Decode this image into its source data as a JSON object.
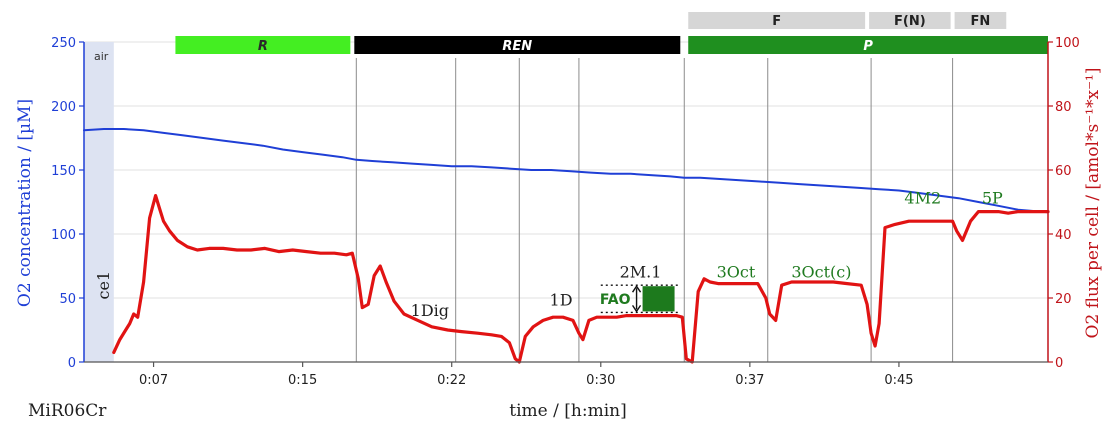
{
  "chart_data": {
    "type": "line",
    "title": "",
    "xlabel": "time / [h:min]",
    "ylabel_left": "O2 concentration / [µM]",
    "ylabel_right": "O2 flux per cell / [amol*s⁻¹*x⁻¹]",
    "medium_label": "MiR06Cr",
    "x_ticks": [
      "0:07",
      "0:15",
      "0:22",
      "0:30",
      "0:37",
      "0:45"
    ],
    "x_tick_minutes": [
      7.5,
      15,
      22.5,
      30,
      37.5,
      45
    ],
    "xlim_minutes": [
      4.0,
      52.5
    ],
    "y_left_ticks": [
      0,
      50,
      100,
      150,
      200,
      250
    ],
    "ylim_left": [
      0,
      250
    ],
    "y_right_ticks": [
      0,
      20,
      40,
      60,
      80,
      100
    ],
    "ylim_right": [
      0,
      100
    ],
    "grid": true,
    "colors": {
      "concentration": "#1f3fd6",
      "flux": "#e11313",
      "left_axis": "#1f3fd6",
      "right_axis": "#c0141a",
      "event_text": "#1f7a1f",
      "air_band": "#dde3f2"
    },
    "air_region": {
      "label": "air",
      "x_start": 4.0,
      "x_end": 5.5
    },
    "vertical_markers": [
      17.7,
      22.7,
      25.9,
      28.9,
      34.2,
      38.4,
      43.6,
      47.7
    ],
    "protocol_bands": [
      {
        "label": "R",
        "x_start": 8.6,
        "x_end": 17.4,
        "color": "#44ee22",
        "text_color": "#2a2a2a",
        "italic": true
      },
      {
        "label": "REN",
        "x_start": 17.6,
        "x_end": 34.0,
        "color": "#000000",
        "text_color": "#ffffff",
        "italic": true
      },
      {
        "label": "P",
        "x_start": 34.4,
        "x_end": 52.5,
        "color": "#1f8f1f",
        "text_color": "#ffffff",
        "italic": true
      },
      {
        "label": "F",
        "x_start": 34.4,
        "x_end": 43.3,
        "color": "#d6d6d6",
        "text_color": "#222222",
        "italic": false,
        "row": "top"
      },
      {
        "label": "F(N)",
        "x_start": 43.5,
        "x_end": 47.6,
        "color": "#d6d6d6",
        "text_color": "#222222",
        "italic": false,
        "row": "top"
      },
      {
        "label": "FN",
        "x_start": 47.8,
        "x_end": 50.4,
        "color": "#d6d6d6",
        "text_color": "#222222",
        "italic": false,
        "row": "top"
      }
    ],
    "events": [
      {
        "label": "ce1",
        "x": 5.0,
        "y_left": 60,
        "color": "#1f1f1f",
        "rotated": true
      },
      {
        "label": "1Dig",
        "x": 21.4,
        "y_left": 36,
        "color": "#1f1f1f"
      },
      {
        "label": "1D",
        "x": 28.0,
        "y_left": 44,
        "color": "#1f1f1f"
      },
      {
        "label": "2M.1",
        "x": 32.0,
        "y_left": 66,
        "color": "#1f1f1f"
      },
      {
        "label": "3Oct",
        "x": 36.8,
        "y_left": 66,
        "color": "#1f7a1f"
      },
      {
        "label": "3Oct(c)",
        "x": 41.1,
        "y_left": 66,
        "color": "#1f7a1f"
      },
      {
        "label": "4M2",
        "x": 46.2,
        "y_left": 124,
        "color": "#1f7a1f"
      },
      {
        "label": "5P",
        "x": 49.7,
        "y_left": 124,
        "color": "#1f7a1f"
      }
    ],
    "fao_annotation": {
      "label": "FAO",
      "x": 31.8,
      "y_low_flux": 15.5,
      "y_high_flux": 24.0,
      "x_line_start": 30.0,
      "x_line_end": 34.0,
      "box_color": "#1d7a1d"
    },
    "series": [
      {
        "name": "O2 concentration",
        "axis": "left",
        "x": [
          4.0,
          5.0,
          6.0,
          7.0,
          8.0,
          9.0,
          10.0,
          11.0,
          12.0,
          13.0,
          14.0,
          15.0,
          16.0,
          17.0,
          17.7,
          18.5,
          19.5,
          20.5,
          21.5,
          22.5,
          23.5,
          24.5,
          25.5,
          26.5,
          27.5,
          28.5,
          29.5,
          30.5,
          31.5,
          32.5,
          33.5,
          34.2,
          35.0,
          36.0,
          37.0,
          38.0,
          39.0,
          40.0,
          41.0,
          42.0,
          43.0,
          44.0,
          45.0,
          46.0,
          47.0,
          48.0,
          49.0,
          50.0,
          51.0,
          52.5
        ],
        "y": [
          181,
          182,
          182,
          181,
          179,
          177,
          175,
          173,
          171,
          169,
          166,
          164,
          162,
          160,
          158,
          157,
          156,
          155,
          154,
          153,
          153,
          152,
          151,
          150,
          150,
          149,
          148,
          147,
          147,
          146,
          145,
          144,
          144,
          143,
          142,
          141,
          140,
          139,
          138,
          137,
          136,
          135,
          134,
          132,
          130,
          128,
          125,
          122,
          119,
          117
        ]
      },
      {
        "name": "O2 flux per cell",
        "axis": "right",
        "x": [
          5.5,
          5.8,
          6.1,
          6.3,
          6.5,
          6.7,
          7.0,
          7.3,
          7.6,
          7.8,
          8.0,
          8.3,
          8.7,
          9.2,
          9.7,
          10.3,
          11.0,
          11.7,
          12.4,
          13.1,
          13.8,
          14.5,
          15.2,
          15.9,
          16.6,
          17.2,
          17.5,
          17.8,
          18.0,
          18.3,
          18.6,
          18.9,
          19.2,
          19.6,
          20.1,
          20.8,
          21.5,
          22.3,
          23.0,
          23.8,
          24.5,
          25.0,
          25.4,
          25.7,
          25.9,
          26.2,
          26.6,
          27.1,
          27.6,
          28.1,
          28.6,
          28.9,
          29.1,
          29.4,
          29.8,
          30.3,
          30.8,
          31.3,
          31.8,
          32.3,
          32.8,
          33.3,
          33.8,
          34.1,
          34.3,
          34.6,
          34.9,
          35.2,
          35.5,
          35.9,
          36.5,
          37.2,
          37.9,
          38.3,
          38.5,
          38.8,
          39.1,
          39.6,
          40.3,
          41.0,
          41.7,
          42.4,
          43.1,
          43.4,
          43.6,
          43.8,
          44.0,
          44.3,
          44.8,
          45.5,
          46.2,
          46.9,
          47.4,
          47.7,
          47.9,
          48.2,
          48.6,
          49.0,
          49.5,
          50.0,
          50.5,
          51.0,
          51.5,
          52.0,
          52.5
        ],
        "y": [
          3,
          7,
          10,
          12,
          15,
          14,
          25,
          45,
          52,
          48,
          44,
          41,
          38,
          36,
          35,
          35.5,
          35.5,
          35,
          35,
          35.5,
          34.5,
          35,
          34.5,
          34,
          34,
          33.5,
          34,
          26,
          17,
          18,
          27,
          30,
          25,
          19,
          15,
          13,
          11,
          10,
          9.5,
          9,
          8.5,
          8,
          6,
          1,
          0,
          8,
          11,
          13,
          14,
          14,
          13,
          9,
          7,
          13,
          14,
          14,
          14,
          14.5,
          14.5,
          14.5,
          14.5,
          14.5,
          14.5,
          14,
          1,
          0,
          22,
          26,
          25,
          24.5,
          24.5,
          24.5,
          24.5,
          20,
          15,
          13,
          24,
          25,
          25,
          25,
          25,
          24.5,
          24,
          18,
          9,
          5,
          12,
          42,
          43,
          44,
          44,
          44,
          44,
          44,
          41,
          38,
          44,
          47,
          47,
          47,
          46.5,
          47,
          47,
          47,
          47
        ]
      }
    ]
  }
}
